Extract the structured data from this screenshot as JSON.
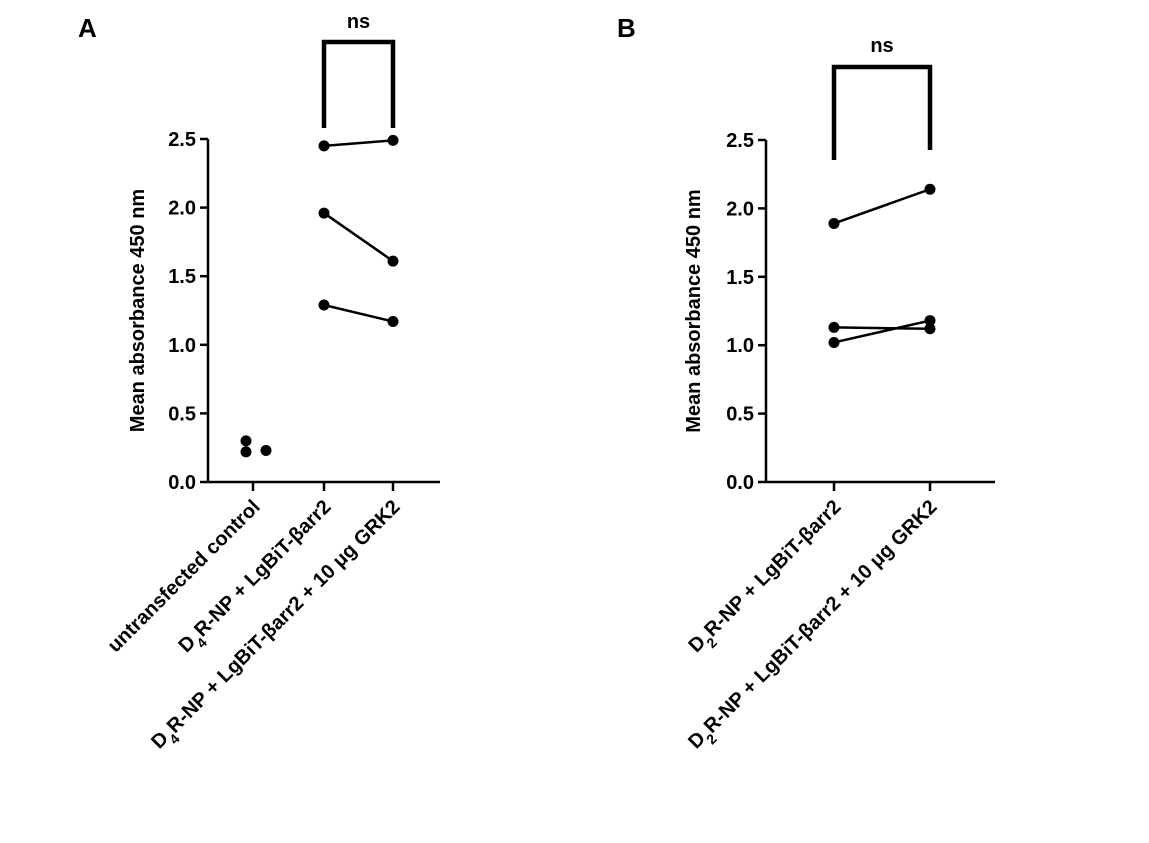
{
  "chart_data": [
    {
      "panel": "A",
      "type": "scatter",
      "ylabel": "Mean absorbance 450 nm",
      "ylim": [
        0,
        2.5
      ],
      "yticks": [
        "0.0",
        "0.5",
        "1.0",
        "1.5",
        "2.0",
        "2.5"
      ],
      "categories": [
        {
          "label": "untransfected control",
          "sub": ""
        },
        {
          "pre": "D",
          "sub": "4",
          "post": "R-NP + LgBiT-βarr2",
          "label": "D4R-NP + LgBiT-βarr2"
        },
        {
          "pre": "D",
          "sub": "4",
          "post": "R-NP + LgBiT-βarr2 + 10 μg GRK2",
          "label": "D4R-NP + LgBiT-βarr2 + 10 μg GRK2"
        }
      ],
      "scatter_points": [
        {
          "category": 0,
          "y": 0.3
        },
        {
          "category": 0,
          "y": 0.22
        },
        {
          "category": 0,
          "y": 0.23
        }
      ],
      "paired_lines": [
        {
          "from_category": 1,
          "to_category": 2,
          "y": [
            2.45,
            2.49
          ]
        },
        {
          "from_category": 1,
          "to_category": 2,
          "y": [
            1.96,
            1.61
          ]
        },
        {
          "from_category": 1,
          "to_category": 2,
          "y": [
            1.29,
            1.17
          ]
        }
      ],
      "significance": {
        "from_category": 1,
        "to_category": 2,
        "label": "ns"
      }
    },
    {
      "panel": "B",
      "type": "line",
      "ylabel": "Mean absorbance 450 nm",
      "ylim": [
        0,
        2.5
      ],
      "yticks": [
        "0.0",
        "0.5",
        "1.0",
        "1.5",
        "2.0",
        "2.5"
      ],
      "categories": [
        {
          "pre": "D",
          "sub": "2",
          "post": "R-NP + LgBiT-βarr2",
          "label": "D2R-NP + LgBiT-βarr2"
        },
        {
          "pre": "D",
          "sub": "2",
          "post": "R-NP + LgBiT-βarr2 + 10 μg GRK2",
          "label": "D2R-NP + LgBiT-βarr2 + 10 μg GRK2"
        }
      ],
      "scatter_points": [],
      "paired_lines": [
        {
          "from_category": 0,
          "to_category": 1,
          "y": [
            1.89,
            2.14
          ]
        },
        {
          "from_category": 0,
          "to_category": 1,
          "y": [
            1.13,
            1.12
          ]
        },
        {
          "from_category": 0,
          "to_category": 1,
          "y": [
            1.02,
            1.18
          ]
        }
      ],
      "significance": {
        "from_category": 0,
        "to_category": 1,
        "label": "ns"
      }
    }
  ]
}
